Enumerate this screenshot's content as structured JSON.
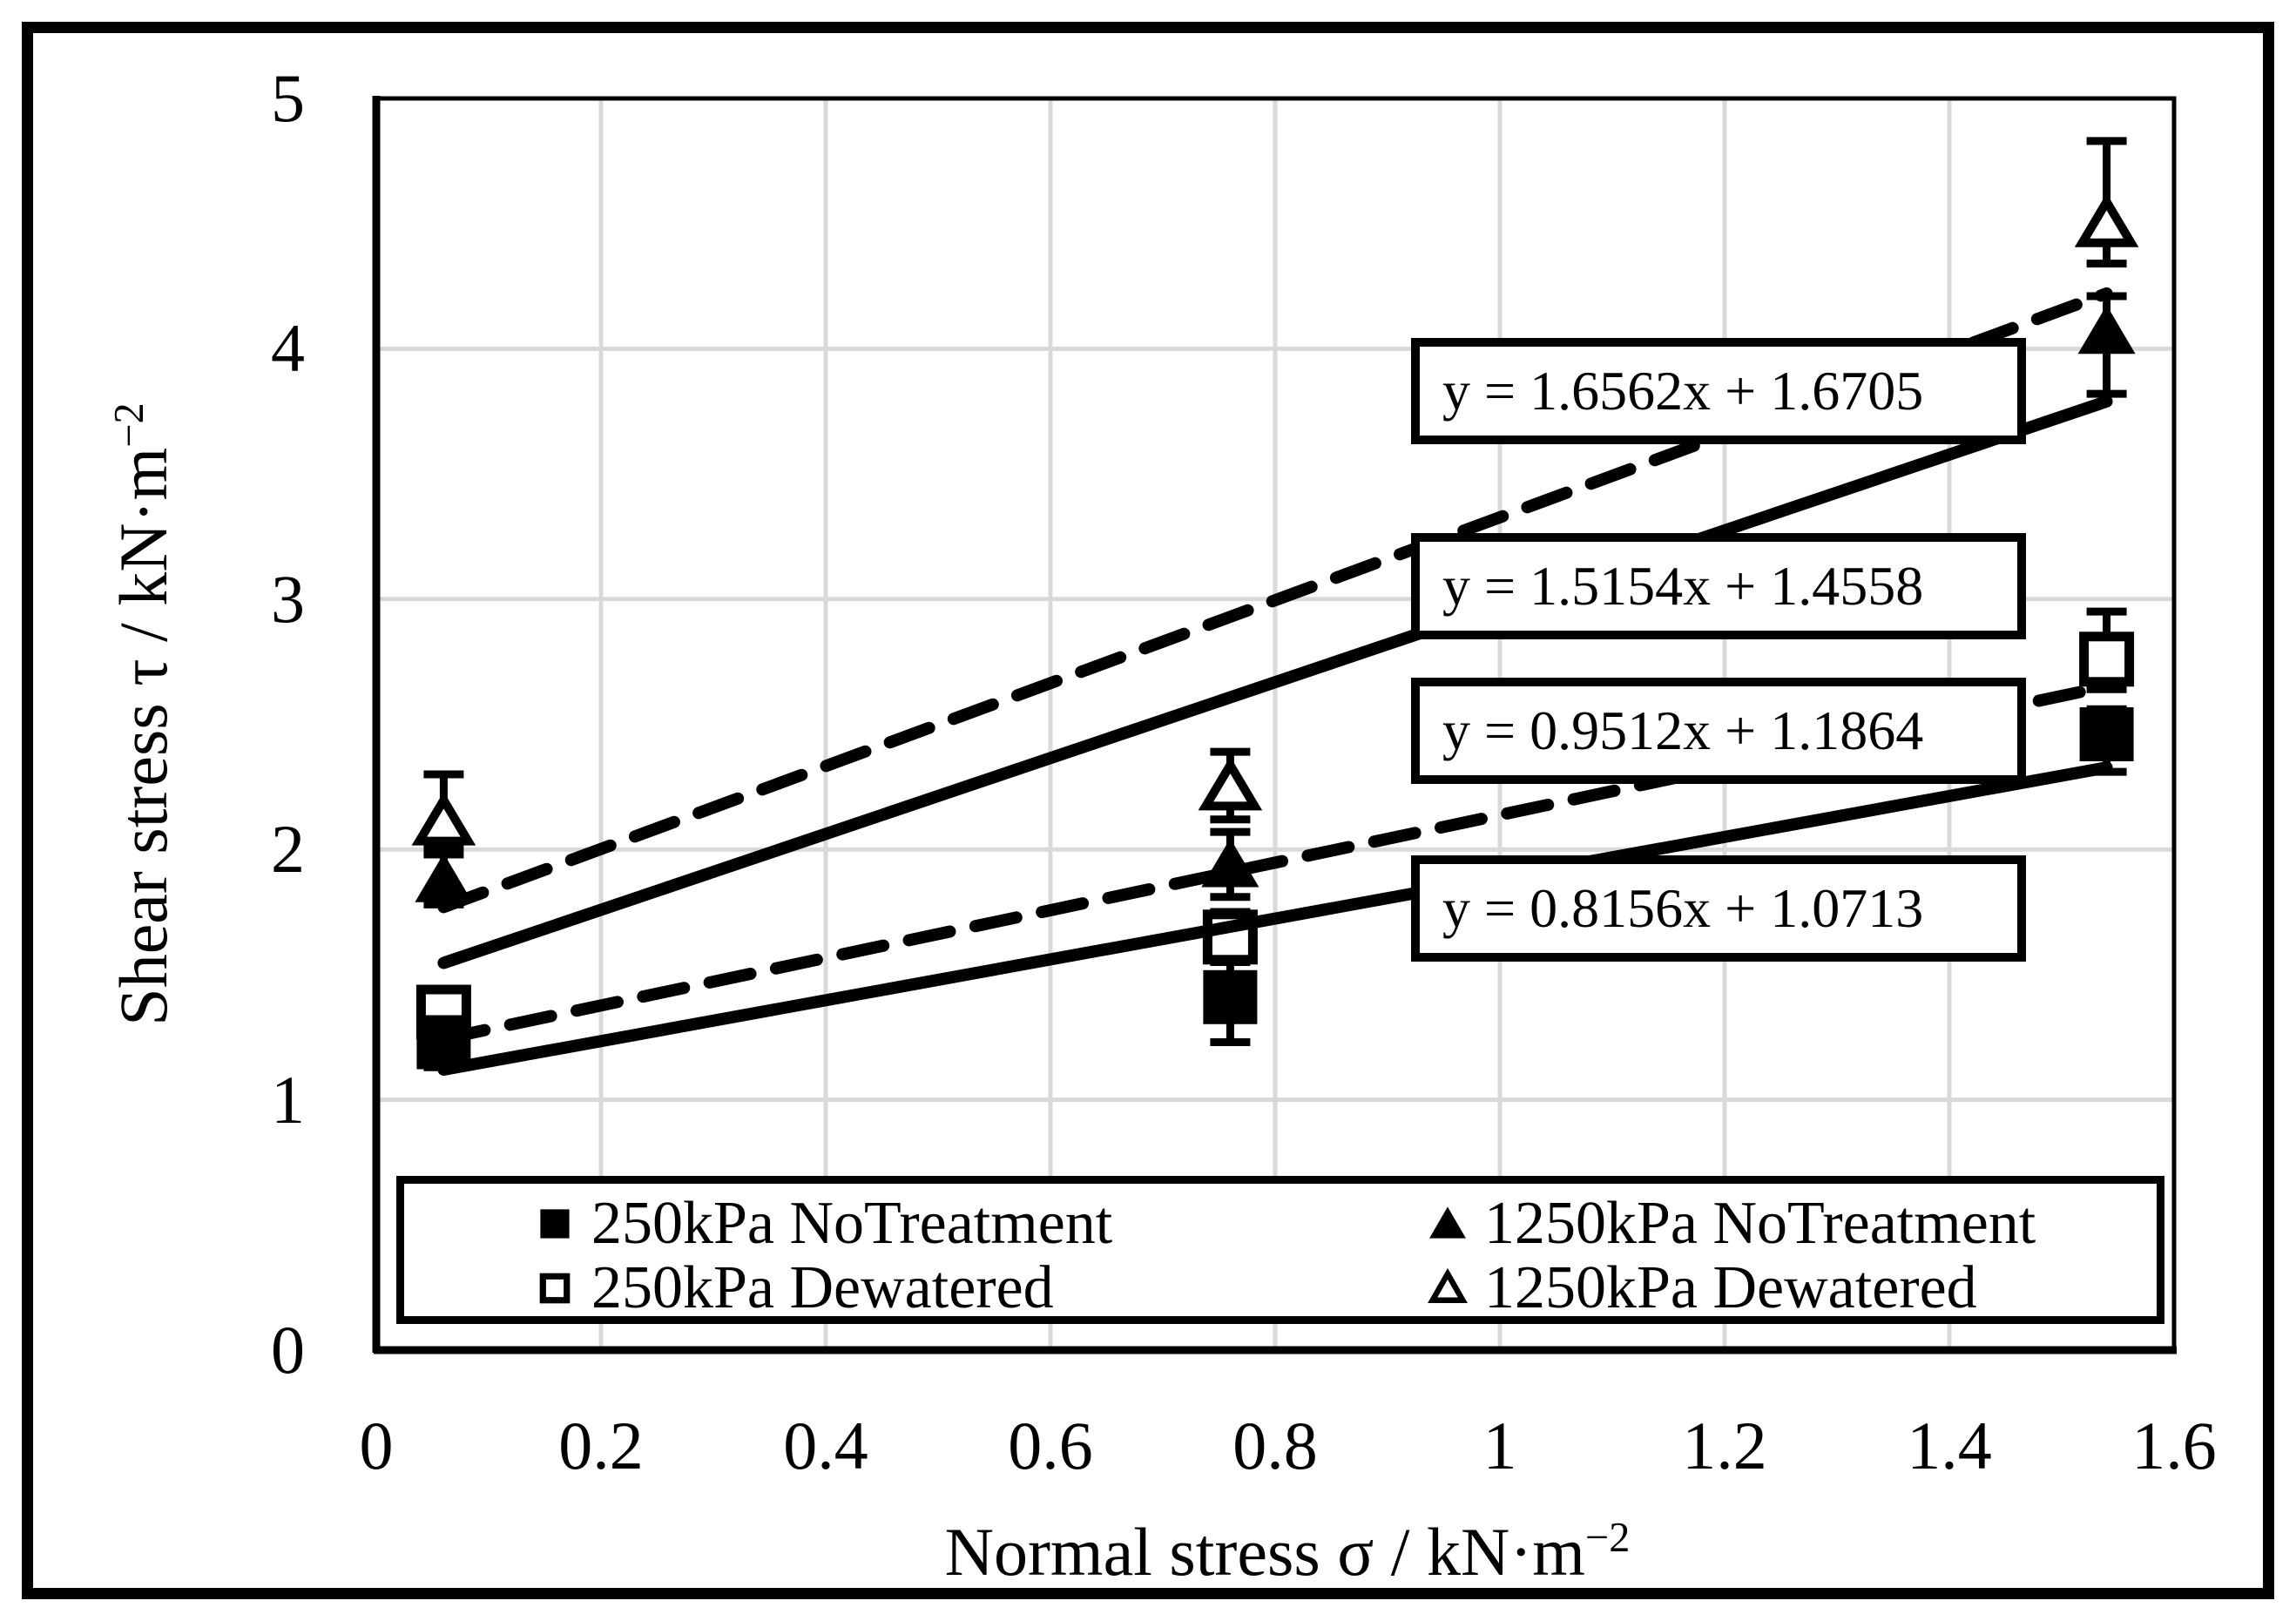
{
  "colors": {
    "foreground": "#000000",
    "background": "#ffffff",
    "grid": "#d9d9d9"
  },
  "chart_data": {
    "type": "scatter",
    "title": "",
    "xlabel": "Normal stress σ / kN·m",
    "xlabel_exponent": "−2",
    "ylabel": "Shear stress τ / kN·m",
    "ylabel_exponent": "−2",
    "xlim": [
      0,
      1.6
    ],
    "ylim": [
      0,
      5
    ],
    "x_tick_values": [
      0,
      0.2,
      0.4,
      0.6,
      0.8,
      1,
      1.2,
      1.4,
      1.6
    ],
    "x_tick_labels": [
      "0",
      "0.2",
      "0.4",
      "0.6",
      "0.8",
      "1",
      "1.2",
      "1.4",
      "1.6"
    ],
    "y_tick_values": [
      0,
      1,
      2,
      3,
      4,
      5
    ],
    "y_tick_labels": [
      "0",
      "1",
      "2",
      "3",
      "4",
      "5"
    ],
    "grid": {
      "show": true,
      "color": "#d9d9d9"
    },
    "legend_position": "bottom-inside",
    "series": [
      {
        "name": "250kPa NoTreatment",
        "marker": "filled-square",
        "trendline_style": "solid",
        "x": [
          0.06,
          0.76,
          1.54
        ],
        "y": [
          1.23,
          1.41,
          2.46
        ],
        "err_up": [
          0.1,
          0.18,
          0.1
        ],
        "err_down": [
          0.1,
          0.18,
          0.15
        ],
        "trendline": {
          "slope": 0.8156,
          "intercept": 1.0713,
          "equation": "y = 0.8156x + 1.0713"
        }
      },
      {
        "name": "250kPa Dewatered",
        "marker": "open-square",
        "trendline_style": "dashed",
        "x": [
          0.06,
          0.76,
          1.54
        ],
        "y": [
          1.35,
          1.65,
          2.76
        ],
        "err_up": [
          0.08,
          0.1,
          0.19
        ],
        "err_down": [
          0.08,
          0.1,
          0.12
        ],
        "trendline": {
          "slope": 0.9512,
          "intercept": 1.1864,
          "equation": "y = 0.9512x + 1.1864"
        }
      },
      {
        "name": "1250kPa NoTreatment",
        "marker": "filled-triangle",
        "trendline_style": "solid",
        "x": [
          0.06,
          0.76,
          1.54
        ],
        "y": [
          1.88,
          1.94,
          4.07
        ],
        "err_up": [
          0.1,
          0.13,
          0.14
        ],
        "err_down": [
          0.1,
          0.13,
          0.25
        ],
        "trendline": {
          "slope": 1.5154,
          "intercept": 1.4558,
          "equation": "y = 1.5154x + 1.4558"
        }
      },
      {
        "name": "1250kPa Dewatered",
        "marker": "open-triangle",
        "trendline_style": "dashed",
        "x": [
          0.06,
          0.76,
          1.54
        ],
        "y": [
          2.11,
          2.25,
          4.5
        ],
        "err_up": [
          0.19,
          0.14,
          0.33
        ],
        "err_down": [
          0.1,
          0.13,
          0.16
        ],
        "trendline": {
          "slope": 1.6562,
          "intercept": 1.6705,
          "equation": "y = 1.6562x + 1.6705"
        }
      }
    ],
    "equation_labels": [
      "y = 1.6562x + 1.6705",
      "y = 1.5154x + 1.4558",
      "y = 0.9512x + 1.1864",
      "y = 0.8156x + 1.0713"
    ]
  }
}
